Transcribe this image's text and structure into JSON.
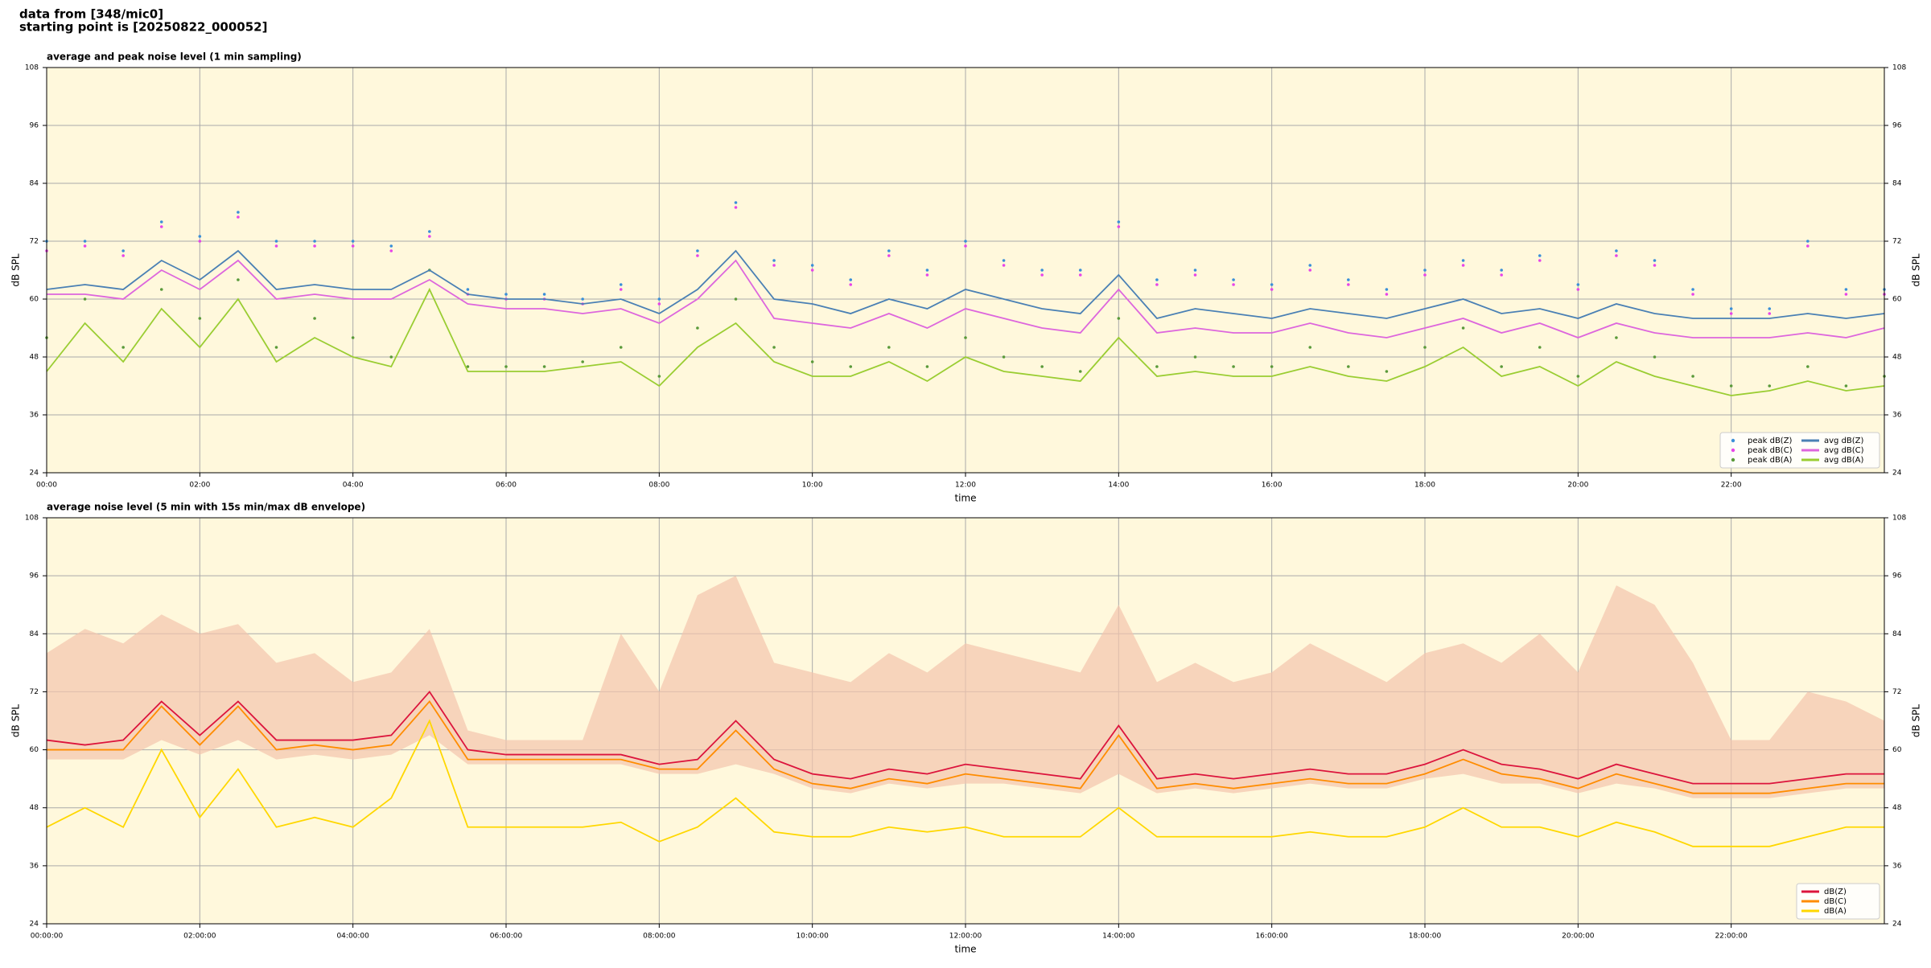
{
  "header": {
    "lines": [
      "data from [348/mic0]",
      "starting point is [20250822_000052]"
    ]
  },
  "chart_data": [
    {
      "type": "line",
      "title": "average and peak noise level (1 min sampling)",
      "xlabel": "time",
      "ylabel": "dB SPL",
      "xlim": [
        0,
        24
      ],
      "ylim": [
        24,
        108
      ],
      "yticks": [
        24,
        36,
        48,
        60,
        72,
        84,
        96,
        108
      ],
      "xticks": [
        {
          "value": 0,
          "label": "00:00"
        },
        {
          "value": 2,
          "label": "02:00"
        },
        {
          "value": 4,
          "label": "04:00"
        },
        {
          "value": 6,
          "label": "06:00"
        },
        {
          "value": 8,
          "label": "08:00"
        },
        {
          "value": 10,
          "label": "10:00"
        },
        {
          "value": 12,
          "label": "12:00"
        },
        {
          "value": 14,
          "label": "14:00"
        },
        {
          "value": 16,
          "label": "16:00"
        },
        {
          "value": 18,
          "label": "18:00"
        },
        {
          "value": 20,
          "label": "20:00"
        },
        {
          "value": 22,
          "label": "22:00"
        }
      ],
      "grid": true,
      "legend": "lower right",
      "background": "#fff8dc",
      "x": [
        0,
        0.5,
        1,
        1.5,
        2,
        2.5,
        3,
        3.5,
        4,
        4.5,
        5,
        5.5,
        6,
        6.5,
        7,
        7.5,
        8,
        8.5,
        9,
        9.5,
        10,
        10.5,
        11,
        11.5,
        12,
        12.5,
        13,
        13.5,
        14,
        14.5,
        15,
        15.5,
        16,
        16.5,
        17,
        17.5,
        18,
        18.5,
        19,
        19.5,
        20,
        20.5,
        21,
        21.5,
        22,
        22.5,
        23,
        23.5,
        24
      ],
      "series": [
        {
          "name": "peak dB(Z)",
          "kind": "scatter",
          "color": "#3a8fd8",
          "values": [
            72,
            72,
            70,
            76,
            73,
            78,
            72,
            72,
            72,
            71,
            74,
            62,
            61,
            61,
            60,
            63,
            60,
            70,
            80,
            68,
            67,
            64,
            70,
            66,
            72,
            68,
            66,
            66,
            76,
            64,
            66,
            64,
            63,
            67,
            64,
            62,
            66,
            68,
            66,
            69,
            63,
            70,
            68,
            62,
            58,
            58,
            72,
            62,
            62
          ]
        },
        {
          "name": "peak dB(C)",
          "kind": "scatter",
          "color": "#e844e8",
          "values": [
            70,
            71,
            69,
            75,
            72,
            77,
            71,
            71,
            71,
            70,
            73,
            61,
            60,
            60,
            59,
            62,
            59,
            69,
            79,
            67,
            66,
            63,
            69,
            65,
            71,
            67,
            65,
            65,
            75,
            63,
            65,
            63,
            62,
            66,
            63,
            61,
            65,
            67,
            65,
            68,
            62,
            69,
            67,
            61,
            57,
            57,
            71,
            61,
            61
          ]
        },
        {
          "name": "peak dB(A)",
          "kind": "scatter",
          "color": "#5a9a3a",
          "values": [
            52,
            60,
            50,
            62,
            56,
            64,
            50,
            56,
            52,
            48,
            66,
            46,
            46,
            46,
            47,
            50,
            44,
            54,
            60,
            50,
            47,
            46,
            50,
            46,
            52,
            48,
            46,
            45,
            56,
            46,
            48,
            46,
            46,
            50,
            46,
            45,
            50,
            54,
            46,
            50,
            44,
            52,
            48,
            44,
            42,
            42,
            46,
            42,
            44
          ]
        },
        {
          "name": "avg dB(Z)",
          "kind": "line",
          "color": "#4a80b4",
          "values": [
            62,
            63,
            62,
            68,
            64,
            70,
            62,
            63,
            62,
            62,
            66,
            61,
            60,
            60,
            59,
            60,
            57,
            62,
            70,
            60,
            59,
            57,
            60,
            58,
            62,
            60,
            58,
            57,
            65,
            56,
            58,
            57,
            56,
            58,
            57,
            56,
            58,
            60,
            57,
            58,
            56,
            59,
            57,
            56,
            56,
            56,
            57,
            56,
            57
          ]
        },
        {
          "name": "avg dB(C)",
          "kind": "line",
          "color": "#dd66dd",
          "values": [
            61,
            61,
            60,
            66,
            62,
            68,
            60,
            61,
            60,
            60,
            64,
            59,
            58,
            58,
            57,
            58,
            55,
            60,
            68,
            56,
            55,
            54,
            57,
            54,
            58,
            56,
            54,
            53,
            62,
            53,
            54,
            53,
            53,
            55,
            53,
            52,
            54,
            56,
            53,
            55,
            52,
            55,
            53,
            52,
            52,
            52,
            53,
            52,
            54
          ]
        },
        {
          "name": "avg dB(A)",
          "kind": "line",
          "color": "#9acd32",
          "values": [
            45,
            55,
            47,
            58,
            50,
            60,
            47,
            52,
            48,
            46,
            62,
            45,
            45,
            45,
            46,
            47,
            42,
            50,
            55,
            47,
            44,
            44,
            47,
            43,
            48,
            45,
            44,
            43,
            52,
            44,
            45,
            44,
            44,
            46,
            44,
            43,
            46,
            50,
            44,
            46,
            42,
            47,
            44,
            42,
            40,
            41,
            43,
            41,
            42
          ]
        }
      ]
    },
    {
      "type": "line",
      "title": "average noise level (5 min with 15s min/max dB envelope)",
      "xlabel": "time",
      "ylabel": "dB SPL",
      "xlim": [
        0,
        24
      ],
      "ylim": [
        24,
        108
      ],
      "yticks": [
        24,
        36,
        48,
        60,
        72,
        84,
        96,
        108
      ],
      "xticks": [
        {
          "value": 0,
          "label": "00:00:00"
        },
        {
          "value": 2,
          "label": "02:00:00"
        },
        {
          "value": 4,
          "label": "04:00:00"
        },
        {
          "value": 6,
          "label": "06:00:00"
        },
        {
          "value": 8,
          "label": "08:00:00"
        },
        {
          "value": 10,
          "label": "10:00:00"
        },
        {
          "value": 12,
          "label": "12:00:00"
        },
        {
          "value": 14,
          "label": "14:00:00"
        },
        {
          "value": 16,
          "label": "16:00:00"
        },
        {
          "value": 18,
          "label": "18:00:00"
        },
        {
          "value": 20,
          "label": "20:00:00"
        },
        {
          "value": 22,
          "label": "22:00:00"
        }
      ],
      "grid": true,
      "legend": "lower right",
      "background": "#fff8dc",
      "x": [
        0,
        0.5,
        1,
        1.5,
        2,
        2.5,
        3,
        3.5,
        4,
        4.5,
        5,
        5.5,
        6,
        6.5,
        7,
        7.5,
        8,
        8.5,
        9,
        9.5,
        10,
        10.5,
        11,
        11.5,
        12,
        12.5,
        13,
        13.5,
        14,
        14.5,
        15,
        15.5,
        16,
        16.5,
        17,
        17.5,
        18,
        18.5,
        19,
        19.5,
        20,
        20.5,
        21,
        21.5,
        22,
        22.5,
        23,
        23.5,
        24
      ],
      "envelope": {
        "color": "#f4c4ac",
        "lower": [
          58,
          58,
          58,
          62,
          59,
          62,
          58,
          59,
          58,
          59,
          63,
          57,
          57,
          57,
          57,
          57,
          55,
          55,
          57,
          55,
          52,
          51,
          53,
          52,
          53,
          53,
          52,
          51,
          55,
          51,
          52,
          51,
          52,
          53,
          52,
          52,
          54,
          55,
          53,
          53,
          51,
          53,
          52,
          50,
          50,
          50,
          51,
          52,
          52
        ],
        "upper": [
          80,
          85,
          82,
          88,
          84,
          86,
          78,
          80,
          74,
          76,
          85,
          64,
          62,
          62,
          62,
          84,
          72,
          92,
          96,
          78,
          76,
          74,
          80,
          76,
          82,
          80,
          78,
          76,
          90,
          74,
          78,
          74,
          76,
          82,
          78,
          74,
          80,
          82,
          78,
          84,
          76,
          94,
          90,
          78,
          62,
          62,
          72,
          70,
          66
        ]
      },
      "series": [
        {
          "name": "dB(Z)",
          "kind": "line",
          "color": "#dc143c",
          "values": [
            62,
            61,
            62,
            70,
            63,
            70,
            62,
            62,
            62,
            63,
            72,
            60,
            59,
            59,
            59,
            59,
            57,
            58,
            66,
            58,
            55,
            54,
            56,
            55,
            57,
            56,
            55,
            54,
            65,
            54,
            55,
            54,
            55,
            56,
            55,
            55,
            57,
            60,
            57,
            56,
            54,
            57,
            55,
            53,
            53,
            53,
            54,
            55,
            55
          ]
        },
        {
          "name": "dB(C)",
          "kind": "line",
          "color": "#ff8c00",
          "values": [
            60,
            60,
            60,
            69,
            61,
            69,
            60,
            61,
            60,
            61,
            70,
            58,
            58,
            58,
            58,
            58,
            56,
            56,
            64,
            56,
            53,
            52,
            54,
            53,
            55,
            54,
            53,
            52,
            63,
            52,
            53,
            52,
            53,
            54,
            53,
            53,
            55,
            58,
            55,
            54,
            52,
            55,
            53,
            51,
            51,
            51,
            52,
            53,
            53
          ]
        },
        {
          "name": "dB(A)",
          "kind": "line",
          "color": "#ffd700",
          "values": [
            44,
            48,
            44,
            60,
            46,
            56,
            44,
            46,
            44,
            50,
            66,
            44,
            44,
            44,
            44,
            45,
            41,
            44,
            50,
            43,
            42,
            42,
            44,
            43,
            44,
            42,
            42,
            42,
            48,
            42,
            42,
            42,
            42,
            43,
            42,
            42,
            44,
            48,
            44,
            44,
            42,
            45,
            43,
            40,
            40,
            40,
            42,
            44,
            44
          ]
        }
      ]
    }
  ]
}
